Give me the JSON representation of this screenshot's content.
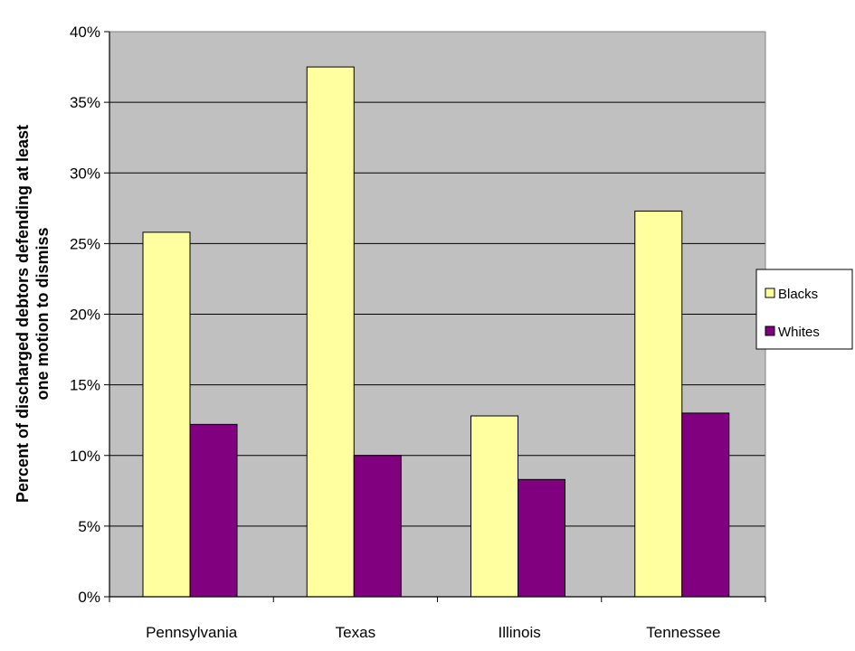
{
  "chart_data": {
    "type": "bar",
    "categories": [
      "Pennsylvania",
      "Texas",
      "Illinois",
      "Tennessee"
    ],
    "series": [
      {
        "name": "Blacks",
        "values": [
          25.8,
          37.5,
          12.8,
          27.3
        ],
        "color": "#FFFFA0"
      },
      {
        "name": "Whites",
        "values": [
          12.2,
          10.0,
          8.3,
          13.0
        ],
        "color": "#800080"
      }
    ],
    "ylabel_lines": [
      "Percent of discharged debtors defending at least",
      "one motion to dismiss"
    ],
    "xlabel": "",
    "ylim": [
      0,
      40
    ],
    "yticks": [
      0,
      5,
      10,
      15,
      20,
      25,
      30,
      35,
      40
    ],
    "ytick_suffix": "%",
    "grid": true,
    "legend_position": "right",
    "plot_background": "#C0C0C0"
  }
}
